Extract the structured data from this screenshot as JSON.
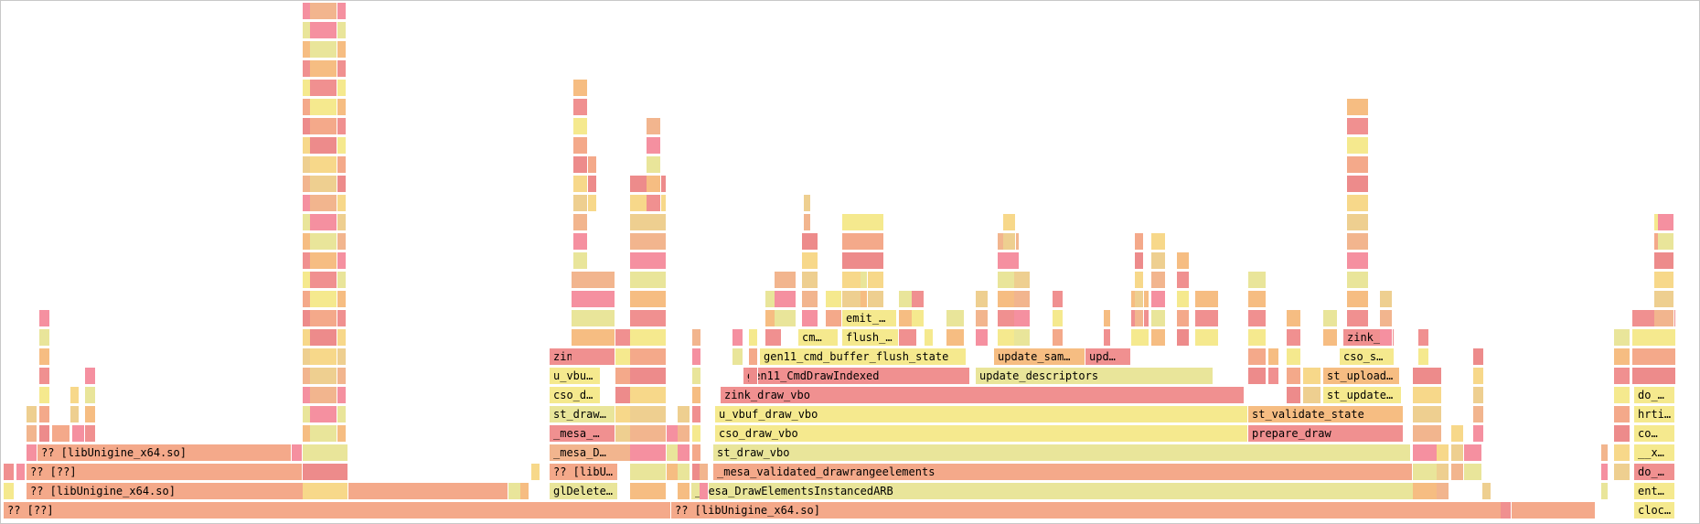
{
  "palette": {
    "salmon": "#f4a98a",
    "yellow": "#f5e98e",
    "red": "#f09090",
    "peach": "#f6bd82",
    "khaki": "#e9e59a",
    "pink": "#f590a0",
    "orange": "#f2b58e"
  },
  "frames": [
    {
      "label": "?? [??]",
      "depth": 0,
      "color": "salmon"
    },
    {
      "label": "?? [libUnigine_x64.so]",
      "depth": 0,
      "color": "salmon"
    },
    {
      "label": "cloc…",
      "depth": 0,
      "color": "yellow"
    },
    {
      "label": "?? [libUnigine_x64.so]",
      "depth": 1,
      "color": "salmon"
    },
    {
      "label": "glDelete…",
      "depth": 1,
      "color": "khaki"
    },
    {
      "label": "_mesa_DrawElementsInstancedARB",
      "depth": 1,
      "color": "khaki"
    },
    {
      "label": "ent…",
      "depth": 1,
      "color": "yellow"
    },
    {
      "label": "?? [??]",
      "depth": 2,
      "color": "salmon"
    },
    {
      "label": "?? [libUn…",
      "depth": 2,
      "color": "salmon"
    },
    {
      "label": "_mesa_validated_drawrangeelements",
      "depth": 2,
      "color": "salmon"
    },
    {
      "label": "do_…",
      "depth": 2,
      "color": "red"
    },
    {
      "label": "?? [libUnigine_x64.so]",
      "depth": 3,
      "color": "salmon"
    },
    {
      "label": "_mesa_D…",
      "depth": 3,
      "color": "orange"
    },
    {
      "label": "st_draw_vbo",
      "depth": 3,
      "color": "khaki"
    },
    {
      "label": "__x…",
      "depth": 3,
      "color": "yellow"
    },
    {
      "label": "_mesa_…",
      "depth": 4,
      "color": "red"
    },
    {
      "label": "cso_draw_vbo",
      "depth": 4,
      "color": "yellow"
    },
    {
      "label": "prepare_draw",
      "depth": 4,
      "color": "red"
    },
    {
      "label": "co…",
      "depth": 4,
      "color": "yellow"
    },
    {
      "label": "st_draw…",
      "depth": 5,
      "color": "khaki"
    },
    {
      "label": "u_vbuf_draw_vbo",
      "depth": 5,
      "color": "yellow"
    },
    {
      "label": "st_validate_state",
      "depth": 5,
      "color": "peach"
    },
    {
      "label": "hrti…",
      "depth": 5,
      "color": "yellow"
    },
    {
      "label": "cso_d…",
      "depth": 6,
      "color": "yellow"
    },
    {
      "label": "zink_draw_vbo",
      "depth": 6,
      "color": "red"
    },
    {
      "label": "st_update…",
      "depth": 6,
      "color": "yellow"
    },
    {
      "label": "do_…",
      "depth": 6,
      "color": "yellow"
    },
    {
      "label": "u_vbu…",
      "depth": 7,
      "color": "yellow"
    },
    {
      "label": "gen11_CmdDrawIndexed",
      "depth": 7,
      "color": "red"
    },
    {
      "label": "update_descriptors",
      "depth": 7,
      "color": "khaki"
    },
    {
      "label": "st_upload…",
      "depth": 7,
      "color": "peach"
    },
    {
      "label": "zink_…",
      "depth": 8,
      "color": "red"
    },
    {
      "label": "gen11_cmd_buffer_flush_state",
      "depth": 8,
      "color": "yellow"
    },
    {
      "label": "update_sam…",
      "depth": 8,
      "color": "peach"
    },
    {
      "label": "upd…",
      "depth": 8,
      "color": "red"
    },
    {
      "label": "cso_s…",
      "depth": 8,
      "color": "yellow"
    },
    {
      "label": "cm…",
      "depth": 9,
      "color": "yellow"
    },
    {
      "label": "flush_…",
      "depth": 9,
      "color": "yellow"
    },
    {
      "label": "zink_…",
      "depth": 9,
      "color": "red"
    },
    {
      "label": "emit_…",
      "depth": 10,
      "color": "yellow"
    }
  ]
}
